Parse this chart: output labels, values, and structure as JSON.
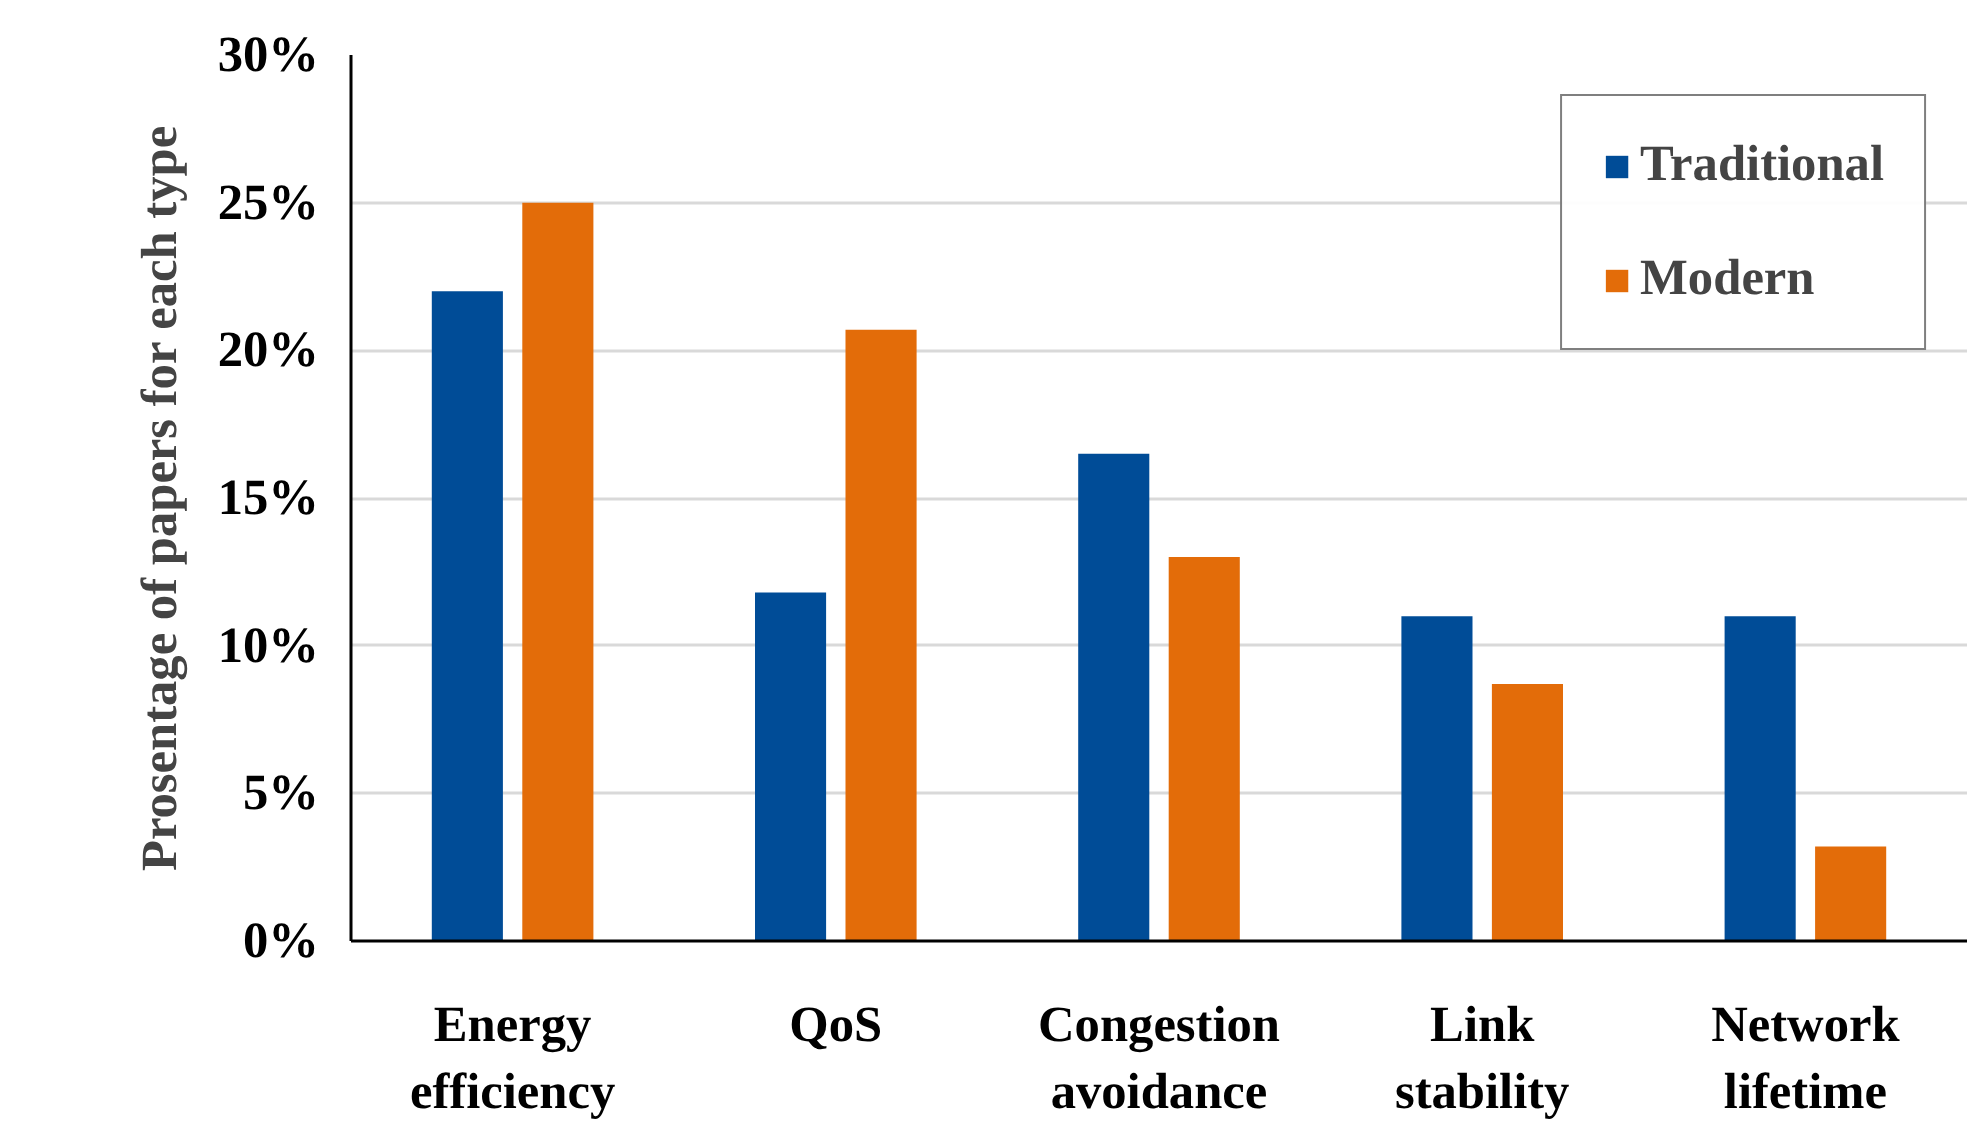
{
  "chart_data": {
    "type": "bar",
    "ylabel": "Prosentage of papers for each type",
    "categories": [
      "Energy\nefficiency",
      "QoS",
      "Congestion\navoidance",
      "Link\nstability",
      "Network\nlifetime"
    ],
    "series": [
      {
        "name": "Traditional",
        "color": "#004c97",
        "values": [
          22.0,
          11.8,
          16.5,
          11.0,
          11.0
        ]
      },
      {
        "name": "Modern",
        "color": "#e36c09",
        "values": [
          25.0,
          20.7,
          13.0,
          8.7,
          3.2
        ]
      }
    ],
    "ylim": [
      0,
      30
    ],
    "yticks": [
      {
        "value": 0,
        "label": "0%"
      },
      {
        "value": 5,
        "label": "5%"
      },
      {
        "value": 10,
        "label": "10%"
      },
      {
        "value": 15,
        "label": "15%"
      },
      {
        "value": 20,
        "label": "20%"
      },
      {
        "value": 25,
        "label": "25%"
      },
      {
        "value": 30,
        "label": "30%"
      }
    ],
    "grid": "y",
    "legend": "top right"
  }
}
